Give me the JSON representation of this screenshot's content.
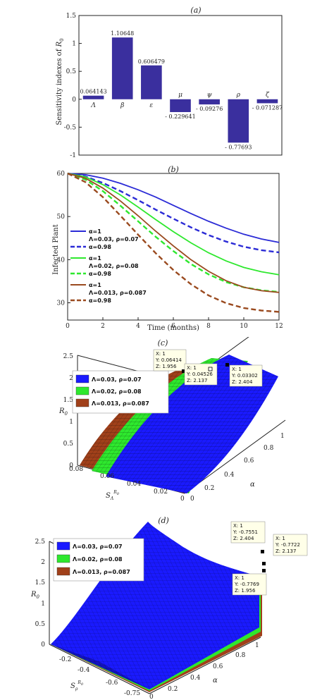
{
  "chart_data": [
    {
      "type": "bar",
      "panel_label": "(a)",
      "ylabel": "Sensitivity indexes of R0",
      "ylim": [
        -1,
        1.5
      ],
      "yticks": [
        "-1",
        "-0.5",
        "0",
        "0.5",
        "1",
        "1.5"
      ],
      "categories": [
        "Λ",
        "β",
        "ε",
        "μ",
        "ψ",
        "ρ",
        "ζ"
      ],
      "values": [
        0.064143,
        1.10648,
        0.606479,
        -0.229641,
        -0.09276,
        -0.77693,
        -0.071287
      ],
      "value_labels": [
        "0.064143",
        "1.10648",
        "0.606479",
        "- 0.229641",
        "- 0.09276",
        "- 0.77693",
        "- 0.071287"
      ],
      "color": "#3a2f9e"
    },
    {
      "type": "line",
      "panel_label": "(b)",
      "xlabel": "Time (months)",
      "ylabel": "Infected Plant",
      "xlim": [
        0,
        12
      ],
      "ylim": [
        26,
        60
      ],
      "xticks": [
        "0",
        "2",
        "4",
        "6",
        "8",
        "10",
        "12"
      ],
      "yticks": [
        "30",
        "40",
        "50",
        "60"
      ],
      "x": [
        0,
        1,
        2,
        3,
        4,
        5,
        6,
        7,
        8,
        9,
        10,
        11,
        12
      ],
      "series": [
        {
          "name": "α=1",
          "group": 0,
          "dash": false,
          "color": "#2b2bd6",
          "values": [
            60,
            59.7,
            58.9,
            57.7,
            56.2,
            54.5,
            52.6,
            50.7,
            48.9,
            47.3,
            45.9,
            44.8,
            44.0
          ]
        },
        {
          "name": "α=0.98",
          "group": 0,
          "dash": true,
          "color": "#2b2bd6",
          "values": [
            60,
            59.3,
            57.8,
            55.9,
            53.8,
            51.6,
            49.5,
            47.5,
            45.7,
            44.2,
            43.0,
            42.2,
            41.7
          ]
        },
        {
          "name": "α=1",
          "group": 1,
          "dash": false,
          "color": "#2ee82e",
          "values": [
            60,
            59.2,
            57.4,
            55.0,
            52.2,
            49.3,
            46.5,
            43.9,
            41.6,
            39.7,
            38.2,
            37.2,
            36.5
          ]
        },
        {
          "name": "α=0.98",
          "group": 1,
          "dash": true,
          "color": "#2ee82e",
          "values": [
            60,
            58.6,
            55.9,
            52.5,
            48.9,
            45.3,
            42.0,
            39.0,
            36.6,
            34.8,
            33.6,
            32.9,
            32.5
          ]
        },
        {
          "name": "α=1",
          "group": 2,
          "dash": false,
          "color": "#9a4a1f",
          "values": [
            60,
            58.9,
            56.6,
            53.6,
            50.2,
            46.6,
            43.2,
            40.0,
            37.3,
            35.1,
            33.6,
            32.8,
            32.4
          ]
        },
        {
          "name": "α=0.98",
          "group": 2,
          "dash": true,
          "color": "#9a4a1f",
          "values": [
            60,
            58.0,
            54.5,
            50.2,
            45.8,
            41.5,
            37.6,
            34.3,
            31.7,
            29.9,
            28.8,
            28.2,
            27.9
          ]
        }
      ],
      "legend_groups": [
        "Λ=0.03, ρ=0.07",
        "Λ=0.02, ρ=0.08",
        "Λ=0.013, ρ=0.087"
      ]
    },
    {
      "type": "surface",
      "panel_label": "(c)",
      "zlabel": "R0",
      "xlabel": "S_Λ^R0",
      "ylabel": "α",
      "zticks": [
        "0",
        "0.5",
        "1",
        "1.5",
        "2",
        "2.5"
      ],
      "xticks": [
        "0.08",
        "0.06",
        "0.04",
        "0.02",
        "0"
      ],
      "yticks": [
        "0",
        "0.2",
        "0.4",
        "0.6",
        "0.8",
        "1"
      ],
      "series": [
        {
          "name": "Λ=0.03, ρ=0.07",
          "color": "#1a1aff"
        },
        {
          "name": "Λ=0.02, ρ=0.08",
          "color": "#2ee82e"
        },
        {
          "name": "Λ=0.013, ρ=0.087",
          "color": "#a0401a"
        }
      ],
      "datatips": [
        [
          "X: 1",
          "Y: 0.06414",
          "Z: 1.956"
        ],
        [
          "X: 1",
          "Y: 0.04526",
          "Z: 2.137"
        ],
        [
          "X: 1",
          "Y: 0.03302",
          "Z: 2.404"
        ]
      ]
    },
    {
      "type": "surface",
      "panel_label": "(d)",
      "zlabel": "R0",
      "xlabel": "S_ρ^R0",
      "ylabel": "α",
      "zticks": [
        "0",
        "0.5",
        "1",
        "1.5",
        "2",
        "2.5"
      ],
      "xticks": [
        "-0.2",
        "-0.4",
        "-0.6",
        "-0.75"
      ],
      "yticks": [
        "0",
        "0.2",
        "0.4",
        "0.6",
        "0.8",
        "1"
      ],
      "series": [
        {
          "name": "Λ=0.03, ρ=0.07",
          "color": "#1a1aff"
        },
        {
          "name": "Λ=0.02, ρ=0.08",
          "color": "#2ee82e"
        },
        {
          "name": "Λ=0.013, ρ=0.087",
          "color": "#a0401a"
        }
      ],
      "datatips": [
        [
          "X: 1",
          "Y: -0.7551",
          "Z: 2.404"
        ],
        [
          "X: 1",
          "Y: -0.7722",
          "Z: 2.137"
        ],
        [
          "X: 1",
          "Y: -0.7769",
          "Z: 1.956"
        ]
      ]
    }
  ]
}
